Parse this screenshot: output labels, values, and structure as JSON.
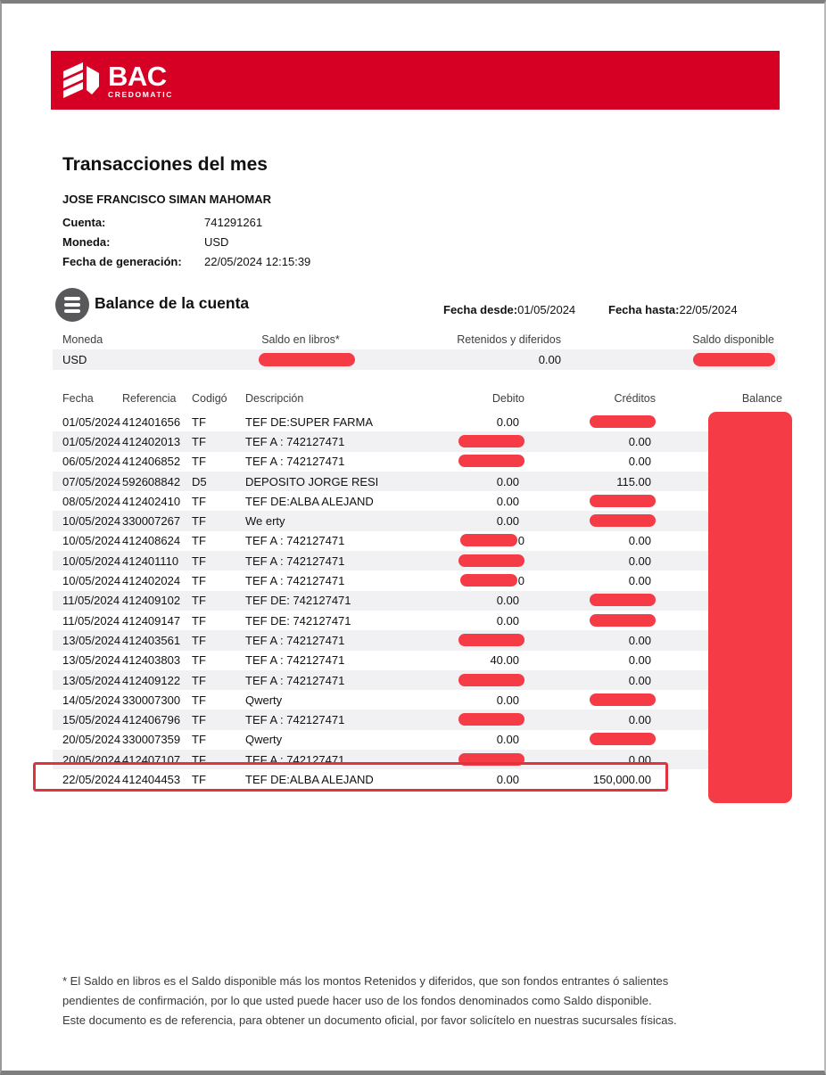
{
  "colors": {
    "brand_red": "#D60024",
    "redaction_red": "#F43B46",
    "row_stripe": "#F1F1F3",
    "highlight_border": "#E0333E"
  },
  "brand": {
    "name": "BAC",
    "subname": "CREDOMATIC"
  },
  "title": "Transacciones del mes",
  "account_holder": "JOSE FRANCISCO SIMAN MAHOMAR",
  "info": [
    {
      "label": "Cuenta:",
      "value": "741291261"
    },
    {
      "label": "Moneda:",
      "value": "USD"
    },
    {
      "label": "Fecha de generación:",
      "value": "22/05/2024  12:15:39"
    }
  ],
  "balance_section": {
    "heading": "Balance de la cuenta",
    "fecha_desde_label": "Fecha desde:",
    "fecha_desde_value": "01/05/2024",
    "fecha_hasta_label": "Fecha hasta:",
    "fecha_hasta_value": "22/05/2024",
    "columns": [
      "Moneda",
      "Saldo en libros*",
      "Retenidos y diferidos",
      "Saldo disponible"
    ],
    "row": {
      "moneda": "USD",
      "saldo_en_libros": "REDACTED",
      "retenidos_y_diferidos": "0.00",
      "saldo_disponible": "REDACTED"
    }
  },
  "transactions": {
    "columns": [
      "Fecha",
      "Referencia",
      "Codigó",
      "Descripción",
      "Debito",
      "Créditos",
      "Balance"
    ],
    "balance_column": "REDACTED",
    "highlighted_row_index": 18,
    "rows": [
      {
        "fecha": "01/05/2024",
        "referencia": "412401656",
        "codigo": "TF",
        "descripcion": "TEF DE:SUPER FARMA",
        "debito": "0.00",
        "credito": "REDACTED"
      },
      {
        "fecha": "01/05/2024",
        "referencia": "412402013",
        "codigo": "TF",
        "descripcion": "TEF A : 742127471",
        "debito": "REDACTED",
        "credito": "0.00"
      },
      {
        "fecha": "06/05/2024",
        "referencia": "412406852",
        "codigo": "TF",
        "descripcion": "TEF A : 742127471",
        "debito": "REDACTED",
        "credito": "0.00"
      },
      {
        "fecha": "07/05/2024",
        "referencia": "592608842",
        "codigo": "D5",
        "descripcion": "DEPOSITO JORGE RESI",
        "debito": "0.00",
        "credito": "115.00"
      },
      {
        "fecha": "08/05/2024",
        "referencia": "412402410",
        "codigo": "TF",
        "descripcion": "TEF DE:ALBA ALEJAND",
        "debito": "0.00",
        "credito": "REDACTED"
      },
      {
        "fecha": "10/05/2024",
        "referencia": "330007267",
        "codigo": "TF",
        "descripcion": "We erty",
        "debito": "0.00",
        "credito": "REDACTED"
      },
      {
        "fecha": "10/05/2024",
        "referencia": "412408624",
        "codigo": "TF",
        "descripcion": "TEF A : 742127471",
        "debito": "REDACTED",
        "debito_peek": "0",
        "credito": "0.00"
      },
      {
        "fecha": "10/05/2024",
        "referencia": "412401110",
        "codigo": "TF",
        "descripcion": "TEF A : 742127471",
        "debito": "REDACTED",
        "credito": "0.00"
      },
      {
        "fecha": "10/05/2024",
        "referencia": "412402024",
        "codigo": "TF",
        "descripcion": "TEF A : 742127471",
        "debito": "REDACTED",
        "debito_peek": "0",
        "credito": "0.00"
      },
      {
        "fecha": "11/05/2024",
        "referencia": "412409102",
        "codigo": "TF",
        "descripcion": "TEF DE: 742127471",
        "debito": "0.00",
        "credito": "REDACTED"
      },
      {
        "fecha": "11/05/2024",
        "referencia": "412409147",
        "codigo": "TF",
        "descripcion": "TEF DE: 742127471",
        "debito": "0.00",
        "credito": "REDACTED"
      },
      {
        "fecha": "13/05/2024",
        "referencia": "412403561",
        "codigo": "TF",
        "descripcion": "TEF A : 742127471",
        "debito": "REDACTED",
        "credito": "0.00"
      },
      {
        "fecha": "13/05/2024",
        "referencia": "412403803",
        "codigo": "TF",
        "descripcion": "TEF A : 742127471",
        "debito": "40.00",
        "credito": "0.00"
      },
      {
        "fecha": "13/05/2024",
        "referencia": "412409122",
        "codigo": "TF",
        "descripcion": "TEF A : 742127471",
        "debito": "REDACTED",
        "credito": "0.00"
      },
      {
        "fecha": "14/05/2024",
        "referencia": "330007300",
        "codigo": "TF",
        "descripcion": "Qwerty",
        "debito": "0.00",
        "credito": "REDACTED"
      },
      {
        "fecha": "15/05/2024",
        "referencia": "412406796",
        "codigo": "TF",
        "descripcion": "TEF A : 742127471",
        "debito": "REDACTED",
        "credito": "0.00"
      },
      {
        "fecha": "20/05/2024",
        "referencia": "330007359",
        "codigo": "TF",
        "descripcion": "Qwerty",
        "debito": "0.00",
        "credito": "REDACTED"
      },
      {
        "fecha": "20/05/2024",
        "referencia": "412407107",
        "codigo": "TF",
        "descripcion": "TEF A : 742127471",
        "debito": "REDACTED",
        "credito": "0.00"
      },
      {
        "fecha": "22/05/2024",
        "referencia": "412404453",
        "codigo": "TF",
        "descripcion": "TEF DE:ALBA ALEJAND",
        "debito": "0.00",
        "credito": "150,000.00"
      }
    ]
  },
  "footnote_lines": [
    "* El Saldo en libros es el Saldo disponible más los montos Retenidos y diferidos, que son fondos entrantes ó salientes",
    "pendientes de confirmación, por lo que usted puede hacer uso de los fondos denominados como Saldo disponible.",
    "Este documento es de referencia, para obtener un documento oficial, por favor solicítelo en nuestras sucursales físicas."
  ]
}
